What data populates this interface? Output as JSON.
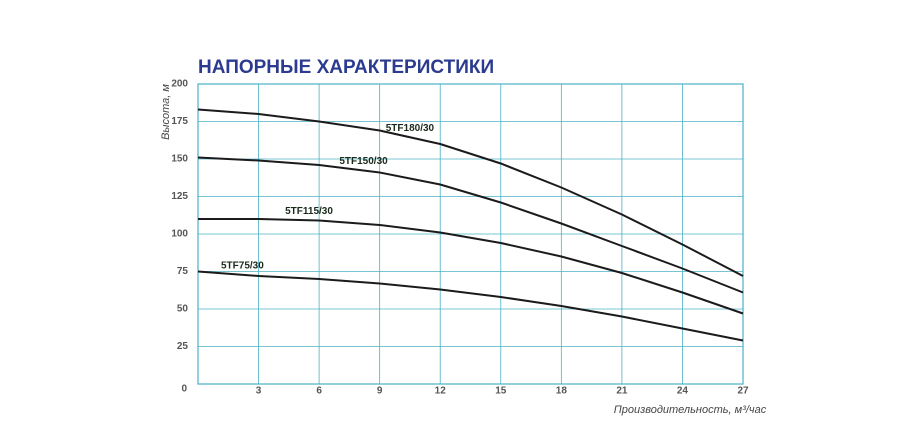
{
  "chart_data": {
    "type": "line",
    "title": "НАПОРНЫЕ ХАРАКТЕРИСТИКИ",
    "x_label": "Производительность, м³/час",
    "y_label": "Высота, м",
    "x": [
      0,
      3,
      6,
      9,
      12,
      15,
      18,
      21,
      24,
      27
    ],
    "series": [
      {
        "name": "5TF180/30",
        "color": "#1b1b1b",
        "values": [
          183,
          180,
          175,
          169,
          160,
          147,
          131,
          113,
          93,
          72
        ]
      },
      {
        "name": "5TF150/30",
        "color": "#1b1b1b",
        "values": [
          151,
          149,
          146,
          141,
          133,
          121,
          107,
          92,
          77,
          61
        ]
      },
      {
        "name": "5TF115/30",
        "color": "#1b1b1b",
        "values": [
          110,
          110,
          109,
          106,
          101,
          94,
          85,
          74,
          61,
          47
        ]
      },
      {
        "name": "5TF75/30",
        "color": "#1b1b1b",
        "values": [
          75,
          72,
          70,
          67,
          63,
          58,
          52,
          45,
          37,
          29
        ]
      }
    ],
    "xlim": [
      0,
      27
    ],
    "xticks": [
      3,
      6,
      9,
      12,
      15,
      18,
      21,
      24,
      27
    ],
    "ylim": [
      0,
      200
    ],
    "yticks": [
      0,
      25,
      50,
      75,
      100,
      125,
      150,
      175,
      200
    ],
    "grid": true,
    "grid_color": "#4bb0c6"
  }
}
